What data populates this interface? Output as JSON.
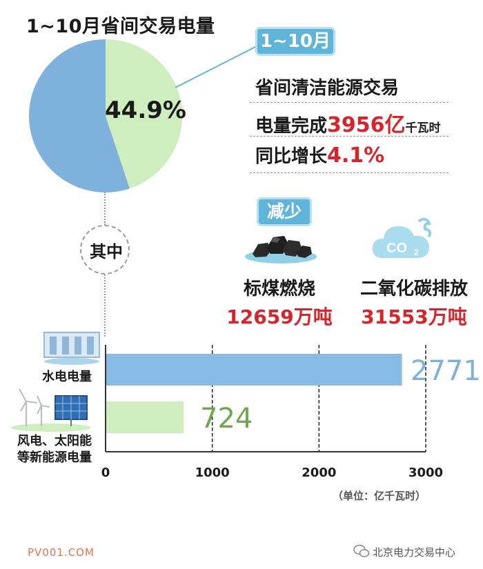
{
  "title": "1~10月省间交易电量",
  "pie": {
    "share_percent": 44.9,
    "label": "44.9%",
    "colors": {
      "highlight": "#cfeec0",
      "rest": "#7eb1dc"
    }
  },
  "period_badge": "1~10月",
  "stats": {
    "line1": "省间清洁能源交易",
    "line2_prefix": "电量完成",
    "line2_value": "3956亿",
    "line2_unit": "千瓦时",
    "line3_prefix": "同比增长",
    "line3_value": "4.1%"
  },
  "qizhong": "其中",
  "reduce_badge": "减少",
  "emissions": {
    "coal_label": "标煤燃烧",
    "coal_value": "12659万吨",
    "co2_label": "二氧化碳排放",
    "co2_value": "31553万吨",
    "co2_icon_text": "CO",
    "co2_icon_sub": "2"
  },
  "chart_data": {
    "type": "bar",
    "orientation": "horizontal",
    "categories": [
      "水电电量",
      "风电、太阳能等新能源电量"
    ],
    "category_lines": [
      [
        "水电电量"
      ],
      [
        "风电、太阳能",
        "等新能源电量"
      ]
    ],
    "values": [
      2771,
      724
    ],
    "value_labels": [
      "2771",
      "724"
    ],
    "colors": [
      "#86bbe3",
      "#cfeec0"
    ],
    "label_colors": [
      "#7eb1dc",
      "#72a552"
    ],
    "xlim": [
      0,
      3000
    ],
    "xticks": [
      0,
      1000,
      2000,
      3000
    ],
    "xtick_labels": [
      "0",
      "1000",
      "2000",
      "3000"
    ],
    "grid": true,
    "unit": "（单位：亿千瓦时）"
  },
  "sources": {
    "left": "PV001.COM",
    "right": "北京电力交易中心"
  }
}
